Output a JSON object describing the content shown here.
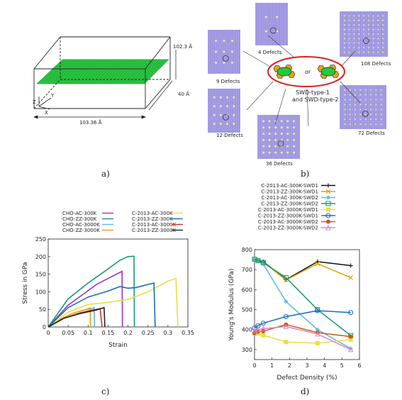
{
  "panel_a": {
    "caption": "a)",
    "dim_top": "102.3 Å",
    "dim_side": "40 Å",
    "dim_bottom": "103.36 Å",
    "axis_z": "Z",
    "axis_y": "Y",
    "axis_x": "X"
  },
  "panel_b": {
    "caption": "b)",
    "labels": {
      "d4": "4 Defects",
      "d9": "9 Defects",
      "d12": "12 Defects",
      "d36": "36 Defects",
      "d72": "72 Defects",
      "d108": "108 Defects",
      "or": "or",
      "swd1": "SWD-type-1",
      "swd2": "and SWD-type-2"
    },
    "colors": {
      "sheet": "#a9a3e6",
      "ring": "#e02020",
      "defect_green": "#28c83c",
      "defect_orange": "#e8a21a"
    }
  },
  "panel_c": {
    "caption": "c)",
    "chart_data": {
      "type": "line",
      "xlabel": "Strain",
      "ylabel": "Stress in GPa",
      "xlim": [
        0,
        0.35
      ],
      "ylim": [
        0,
        250
      ],
      "xticks": [
        "0",
        "0.05",
        "0.1",
        "0.15",
        "0.2",
        "0.25",
        "0.3",
        "0.35"
      ],
      "yticks": [
        "0",
        "50",
        "100",
        "150",
        "200",
        "250"
      ],
      "legend_placement": "top",
      "series": [
        {
          "name": "CHO-AC-300K",
          "color": "#9b30d9",
          "x": [
            0,
            0.05,
            0.09,
            0.12,
            0.15,
            0.18,
            0.185,
            0.186
          ],
          "y": [
            0,
            62,
            95,
            120,
            138,
            155,
            158,
            0
          ]
        },
        {
          "name": "CHO-ZZ-300K",
          "color": "#149a72",
          "x": [
            0,
            0.05,
            0.1,
            0.15,
            0.18,
            0.2,
            0.215,
            0.216
          ],
          "y": [
            0,
            80,
            125,
            165,
            190,
            200,
            201,
            0
          ]
        },
        {
          "name": "CHO-AC-3000K",
          "color": "#5ab8e8",
          "x": [
            0,
            0.03,
            0.06,
            0.09,
            0.11,
            0.115,
            0.116
          ],
          "y": [
            0,
            22,
            38,
            48,
            53,
            55,
            0
          ]
        },
        {
          "name": "CHO-ZZ-3000K",
          "color": "#f0a000",
          "x": [
            0,
            0.03,
            0.06,
            0.09,
            0.1,
            0.105,
            0.106
          ],
          "y": [
            0,
            22,
            38,
            48,
            52,
            54,
            0
          ]
        },
        {
          "name": "C-2013-AC-300K",
          "color": "#e8e040",
          "x": [
            0,
            0.05,
            0.1,
            0.15,
            0.2,
            0.25,
            0.3,
            0.32,
            0.325
          ],
          "y": [
            0,
            42,
            64,
            70,
            78,
            100,
            130,
            138,
            0
          ]
        },
        {
          "name": "C-2013-ZZ-300K",
          "color": "#1a6bb8",
          "x": [
            0,
            0.05,
            0.1,
            0.15,
            0.18,
            0.2,
            0.22,
            0.265,
            0.268
          ],
          "y": [
            0,
            55,
            85,
            102,
            115,
            110,
            112,
            125,
            0
          ]
        },
        {
          "name": "C-2013-AC-3000K",
          "color": "#d03030",
          "x": [
            0,
            0.04,
            0.08,
            0.11,
            0.13,
            0.135
          ],
          "y": [
            0,
            25,
            40,
            48,
            52,
            0
          ]
        },
        {
          "name": "C-2013-ZZ-3000K",
          "color": "#222222",
          "x": [
            0,
            0.04,
            0.08,
            0.12,
            0.14,
            0.142
          ],
          "y": [
            0,
            25,
            38,
            48,
            55,
            0
          ]
        }
      ]
    }
  },
  "panel_d": {
    "caption": "d)",
    "chart_data": {
      "type": "line",
      "xlabel": "Defect Density (%)",
      "ylabel": "Young's Modulus (GPa)",
      "xlim": [
        0,
        6
      ],
      "ylim": [
        250,
        800
      ],
      "xticks": [
        "0",
        "1",
        "2",
        "3",
        "4",
        "5",
        "6"
      ],
      "yticks": [
        "300",
        "400",
        "500",
        "600",
        "700",
        "800"
      ],
      "legend_placement": "top",
      "series": [
        {
          "name": "C-2013-AC-300K-SWD1",
          "color": "#111111",
          "marker": "plus",
          "x": [
            0,
            0.2,
            0.5,
            1.8,
            3.6,
            5.5
          ],
          "y": [
            750,
            748,
            740,
            650,
            740,
            720
          ]
        },
        {
          "name": "C-2013-ZZ-300K-SWD1",
          "color": "#e0a000",
          "marker": "x",
          "x": [
            0,
            0.2,
            0.5,
            1.8,
            3.6,
            5.5
          ],
          "y": [
            750,
            745,
            738,
            648,
            730,
            660
          ]
        },
        {
          "name": "C-2013-AC-300K-SWD2",
          "color": "#5ab8e8",
          "marker": "star",
          "x": [
            0,
            0.2,
            0.5,
            1.8,
            3.6,
            5.5
          ],
          "y": [
            748,
            742,
            728,
            540,
            400,
            305
          ]
        },
        {
          "name": "C-2013-ZZ-300K-SWD2",
          "color": "#149a72",
          "marker": "square",
          "x": [
            0,
            0.2,
            0.5,
            1.8,
            3.6,
            5.5
          ],
          "y": [
            752,
            745,
            735,
            660,
            500,
            370
          ]
        },
        {
          "name": "C-2013-AC-3000K-SWD1",
          "color": "#e8e040",
          "marker": "square-filled",
          "x": [
            0,
            0.2,
            0.5,
            1.8,
            3.6,
            5.5
          ],
          "y": [
            378,
            380,
            372,
            338,
            332,
            350
          ]
        },
        {
          "name": "C-2013-ZZ-3000K-SWD1",
          "color": "#1a6bb8",
          "marker": "circle",
          "x": [
            0,
            0.2,
            0.5,
            1.8,
            3.6,
            5.5
          ],
          "y": [
            408,
            420,
            432,
            465,
            495,
            485
          ]
        },
        {
          "name": "C-2013-AC-3000K-SWD2",
          "color": "#c85a14",
          "marker": "circle-filled",
          "x": [
            0,
            0.2,
            0.5,
            1.8,
            3.6,
            5.5
          ],
          "y": [
            382,
            390,
            392,
            425,
            385,
            365
          ]
        },
        {
          "name": "C-2013-ZZ-3000K-SWD2",
          "color": "#d888c8",
          "marker": "triangle",
          "x": [
            0,
            0.2,
            0.5,
            1.8,
            3.6,
            5.5
          ],
          "y": [
            395,
            400,
            405,
            415,
            378,
            300
          ]
        }
      ]
    }
  }
}
